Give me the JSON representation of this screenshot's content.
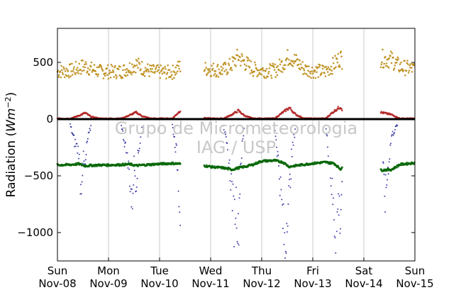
{
  "chart_data": {
    "type": "scatter",
    "title": "",
    "xlabel": "",
    "ylabel": "Radiation (Wm^-2)",
    "ylabel_parts": {
      "base": "Radiation (",
      "italic": "Wm",
      "sup": "−2",
      "close": ")"
    },
    "watermark": [
      "Grupo de Micrometeorologia",
      "IAG / USP"
    ],
    "xlim": [
      "2009-11-08",
      "2009-11-15"
    ],
    "ylim": [
      -1250,
      800
    ],
    "grid": {
      "x": true,
      "y": false
    },
    "x_ticks": [
      {
        "day": "Sun",
        "date": "Nov-08"
      },
      {
        "day": "Mon",
        "date": "Nov-09"
      },
      {
        "day": "Tue",
        "date": "Nov-10"
      },
      {
        "day": "Wed",
        "date": "Nov-11"
      },
      {
        "day": "Thu",
        "date": "Nov-12"
      },
      {
        "day": "Fri",
        "date": "Nov-13"
      },
      {
        "day": "Sat",
        "date": "Nov-14"
      },
      {
        "day": "Sun",
        "date": "Nov-15"
      }
    ],
    "y_ticks": [
      500,
      0,
      -500,
      -1000
    ],
    "y_tick_labels": [
      "500",
      "0",
      "−500",
      "−1000"
    ],
    "data_gaps": [
      [
        "2009-11-10 10:00",
        "2009-11-10 21:00"
      ],
      [
        "2009-11-13 14:00",
        "2009-11-14 08:00"
      ]
    ],
    "series": [
      {
        "color": "#b8860b",
        "x": [
          "2009-11-08 00:00",
          "2009-11-08 06:00",
          "2009-11-08 10:00",
          "2009-11-08 13:00",
          "2009-11-08 16:00",
          "2009-11-08 20:00",
          "2009-11-09 00:00",
          "2009-11-09 06:00",
          "2009-11-09 10:00",
          "2009-11-09 13:00",
          "2009-11-09 16:00",
          "2009-11-09 20:00",
          "2009-11-10 00:00",
          "2009-11-10 06:00",
          "2009-11-10 10:00",
          "2009-11-10 21:00",
          "2009-11-11 00:00",
          "2009-11-11 06:00",
          "2009-11-11 10:00",
          "2009-11-11 13:00",
          "2009-11-11 16:00",
          "2009-11-11 20:00",
          "2009-11-12 00:00",
          "2009-11-12 06:00",
          "2009-11-12 10:00",
          "2009-11-12 13:00",
          "2009-11-12 16:00",
          "2009-11-12 20:00",
          "2009-11-13 00:00",
          "2009-11-13 06:00",
          "2009-11-13 10:00",
          "2009-11-13 13:00",
          "2009-11-13 14:00",
          "2009-11-14 08:00",
          "2009-11-14 13:00",
          "2009-11-14 17:00",
          "2009-11-15 00:00"
        ],
        "y": [
          420,
          425,
          450,
          470,
          440,
          420,
          418,
          420,
          455,
          485,
          450,
          420,
          415,
          412,
          470,
          445,
          440,
          430,
          480,
          550,
          500,
          440,
          430,
          425,
          490,
          555,
          510,
          440,
          425,
          420,
          480,
          545,
          510,
          535,
          525,
          460,
          440
        ]
      },
      {
        "color": "#b22222",
        "x": [
          "2009-11-08 00:00",
          "2009-11-08 06:00",
          "2009-11-08 10:00",
          "2009-11-08 13:00",
          "2009-11-08 16:00",
          "2009-11-08 20:00",
          "2009-11-09 00:00",
          "2009-11-09 06:00",
          "2009-11-09 10:00",
          "2009-11-09 13:00",
          "2009-11-09 16:00",
          "2009-11-09 20:00",
          "2009-11-10 00:00",
          "2009-11-10 06:00",
          "2009-11-10 10:00",
          "2009-11-10 21:00",
          "2009-11-11 00:00",
          "2009-11-11 06:00",
          "2009-11-11 10:00",
          "2009-11-11 13:00",
          "2009-11-11 16:00",
          "2009-11-11 20:00",
          "2009-11-12 00:00",
          "2009-11-12 06:00",
          "2009-11-12 10:00",
          "2009-11-12 13:00",
          "2009-11-12 16:00",
          "2009-11-12 20:00",
          "2009-11-13 00:00",
          "2009-11-13 06:00",
          "2009-11-13 10:00",
          "2009-11-13 13:00",
          "2009-11-13 14:00",
          "2009-11-14 08:00",
          "2009-11-14 13:00",
          "2009-11-14 17:00",
          "2009-11-15 00:00"
        ],
        "y": [
          5,
          5,
          30,
          55,
          20,
          5,
          5,
          5,
          35,
          60,
          25,
          5,
          5,
          5,
          80,
          10,
          5,
          5,
          40,
          75,
          30,
          5,
          5,
          5,
          60,
          100,
          40,
          5,
          5,
          5,
          70,
          110,
          80,
          60,
          40,
          5,
          5
        ]
      },
      {
        "color": "#000000",
        "x": [
          "2009-11-08 00:00",
          "2009-11-15 00:00"
        ],
        "y": [
          0,
          0
        ]
      },
      {
        "color": "#00008b",
        "x": [
          "2009-11-08 06:00",
          "2009-11-08 08:00",
          "2009-11-08 10:00",
          "2009-11-08 11:00",
          "2009-11-08 12:00",
          "2009-11-08 13:00",
          "2009-11-08 14:00",
          "2009-11-08 16:00",
          "2009-11-09 06:00",
          "2009-11-09 08:00",
          "2009-11-09 10:00",
          "2009-11-09 11:00",
          "2009-11-09 12:00",
          "2009-11-09 13:00",
          "2009-11-09 14:00",
          "2009-11-09 16:00",
          "2009-11-10 06:00",
          "2009-11-10 08:00",
          "2009-11-10 10:00",
          "2009-11-11 06:00",
          "2009-11-11 08:00",
          "2009-11-11 10:00",
          "2009-11-11 11:00",
          "2009-11-11 12:00",
          "2009-11-11 13:00",
          "2009-11-11 14:00",
          "2009-11-11 16:00",
          "2009-11-12 06:00",
          "2009-11-12 08:00",
          "2009-11-12 10:00",
          "2009-11-12 11:00",
          "2009-11-12 12:00",
          "2009-11-12 13:00",
          "2009-11-12 14:00",
          "2009-11-12 16:00",
          "2009-11-13 06:00",
          "2009-11-13 08:00",
          "2009-11-13 10:00",
          "2009-11-13 11:00",
          "2009-11-13 12:00",
          "2009-11-13 13:00",
          "2009-11-13 14:00",
          "2009-11-14 09:00",
          "2009-11-14 10:00",
          "2009-11-14 11:00",
          "2009-11-14 13:00",
          "2009-11-14 16:00"
        ],
        "y": [
          -50,
          -200,
          -280,
          -620,
          -350,
          -450,
          -200,
          -40,
          -50,
          -250,
          -500,
          -780,
          -400,
          -550,
          -300,
          -40,
          -50,
          -300,
          -880,
          -50,
          -300,
          -600,
          -900,
          -700,
          -1050,
          -400,
          -40,
          -50,
          -400,
          -900,
          -1180,
          -800,
          -650,
          -350,
          -40,
          -50,
          -400,
          -850,
          -1080,
          -700,
          -900,
          -400,
          -450,
          -700,
          -500,
          -150,
          -40
        ]
      },
      {
        "color": "#006400",
        "x": [
          "2009-11-08 00:00",
          "2009-11-08 06:00",
          "2009-11-08 10:00",
          "2009-11-08 13:00",
          "2009-11-08 16:00",
          "2009-11-08 20:00",
          "2009-11-09 00:00",
          "2009-11-09 06:00",
          "2009-11-09 10:00",
          "2009-11-09 13:00",
          "2009-11-09 16:00",
          "2009-11-09 20:00",
          "2009-11-10 00:00",
          "2009-11-10 06:00",
          "2009-11-10 10:00",
          "2009-11-10 21:00",
          "2009-11-11 00:00",
          "2009-11-11 06:00",
          "2009-11-11 10:00",
          "2009-11-11 13:00",
          "2009-11-11 16:00",
          "2009-11-11 20:00",
          "2009-11-12 00:00",
          "2009-11-12 06:00",
          "2009-11-12 10:00",
          "2009-11-12 13:00",
          "2009-11-12 16:00",
          "2009-11-12 20:00",
          "2009-11-13 00:00",
          "2009-11-13 06:00",
          "2009-11-13 10:00",
          "2009-11-13 13:00",
          "2009-11-13 14:00",
          "2009-11-14 08:00",
          "2009-11-14 13:00",
          "2009-11-14 17:00",
          "2009-11-15 00:00"
        ],
        "y": [
          -405,
          -402,
          -395,
          -412,
          -408,
          -405,
          -405,
          -402,
          -398,
          -410,
          -405,
          -400,
          -395,
          -390,
          -395,
          -410,
          -420,
          -430,
          -445,
          -430,
          -420,
          -400,
          -370,
          -365,
          -380,
          -420,
          -410,
          -400,
          -390,
          -380,
          -390,
          -440,
          -420,
          -450,
          -445,
          -400,
          -385
        ]
      }
    ]
  }
}
